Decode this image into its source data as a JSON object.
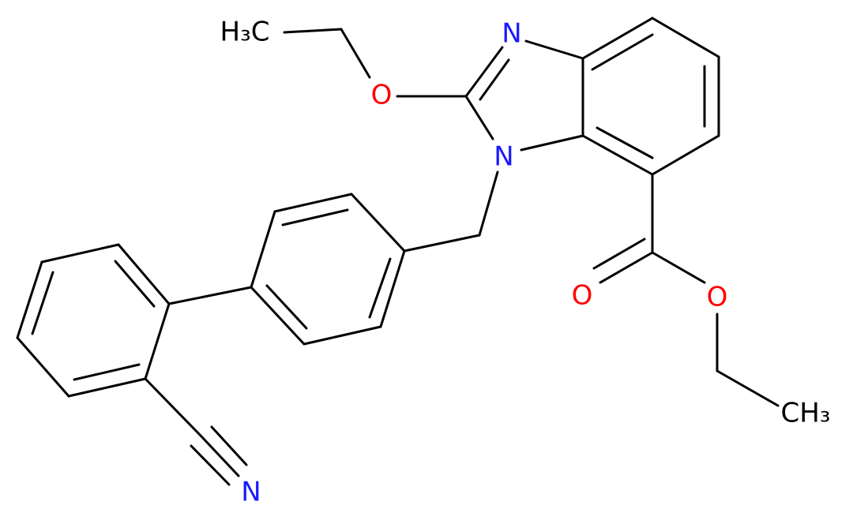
{
  "atoms": [
    {
      "label": "H₃C"
    },
    {
      "label": "O"
    },
    {
      "label": "N"
    },
    {
      "label": "N"
    },
    {
      "label": "O"
    },
    {
      "label": "O"
    },
    {
      "label": "CH₃"
    },
    {
      "label": "N"
    }
  ]
}
